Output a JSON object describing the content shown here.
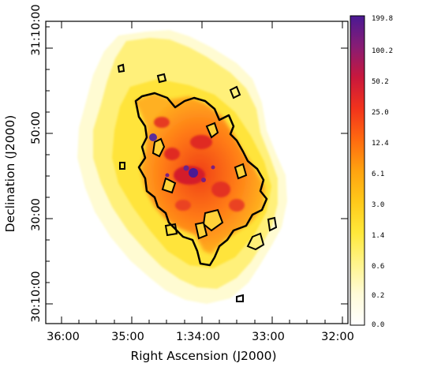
{
  "figure": {
    "xlabel": "Right Ascension (J2000)",
    "ylabel": "Declination (J2000)",
    "x_ticks": [
      "36:00",
      "35:00",
      "1:34:00",
      "33:00",
      "32:00"
    ],
    "y_ticks": [
      "31:10:00",
      "50:00",
      "30:00",
      "30:10:00"
    ],
    "colorbar": {
      "labels": [
        "199.8",
        "100.2",
        "50.2",
        "25.0",
        "12.4",
        "6.1",
        "3.0",
        "1.4",
        "0.6",
        "0.2",
        "0.0"
      ],
      "colors": [
        "#ffffff",
        "#fffbd8",
        "#fff48a",
        "#ffe83a",
        "#ffc91a",
        "#ffa210",
        "#ff6a10",
        "#f2331c",
        "#c9183c",
        "#881c74",
        "#4a1a94"
      ]
    }
  }
}
